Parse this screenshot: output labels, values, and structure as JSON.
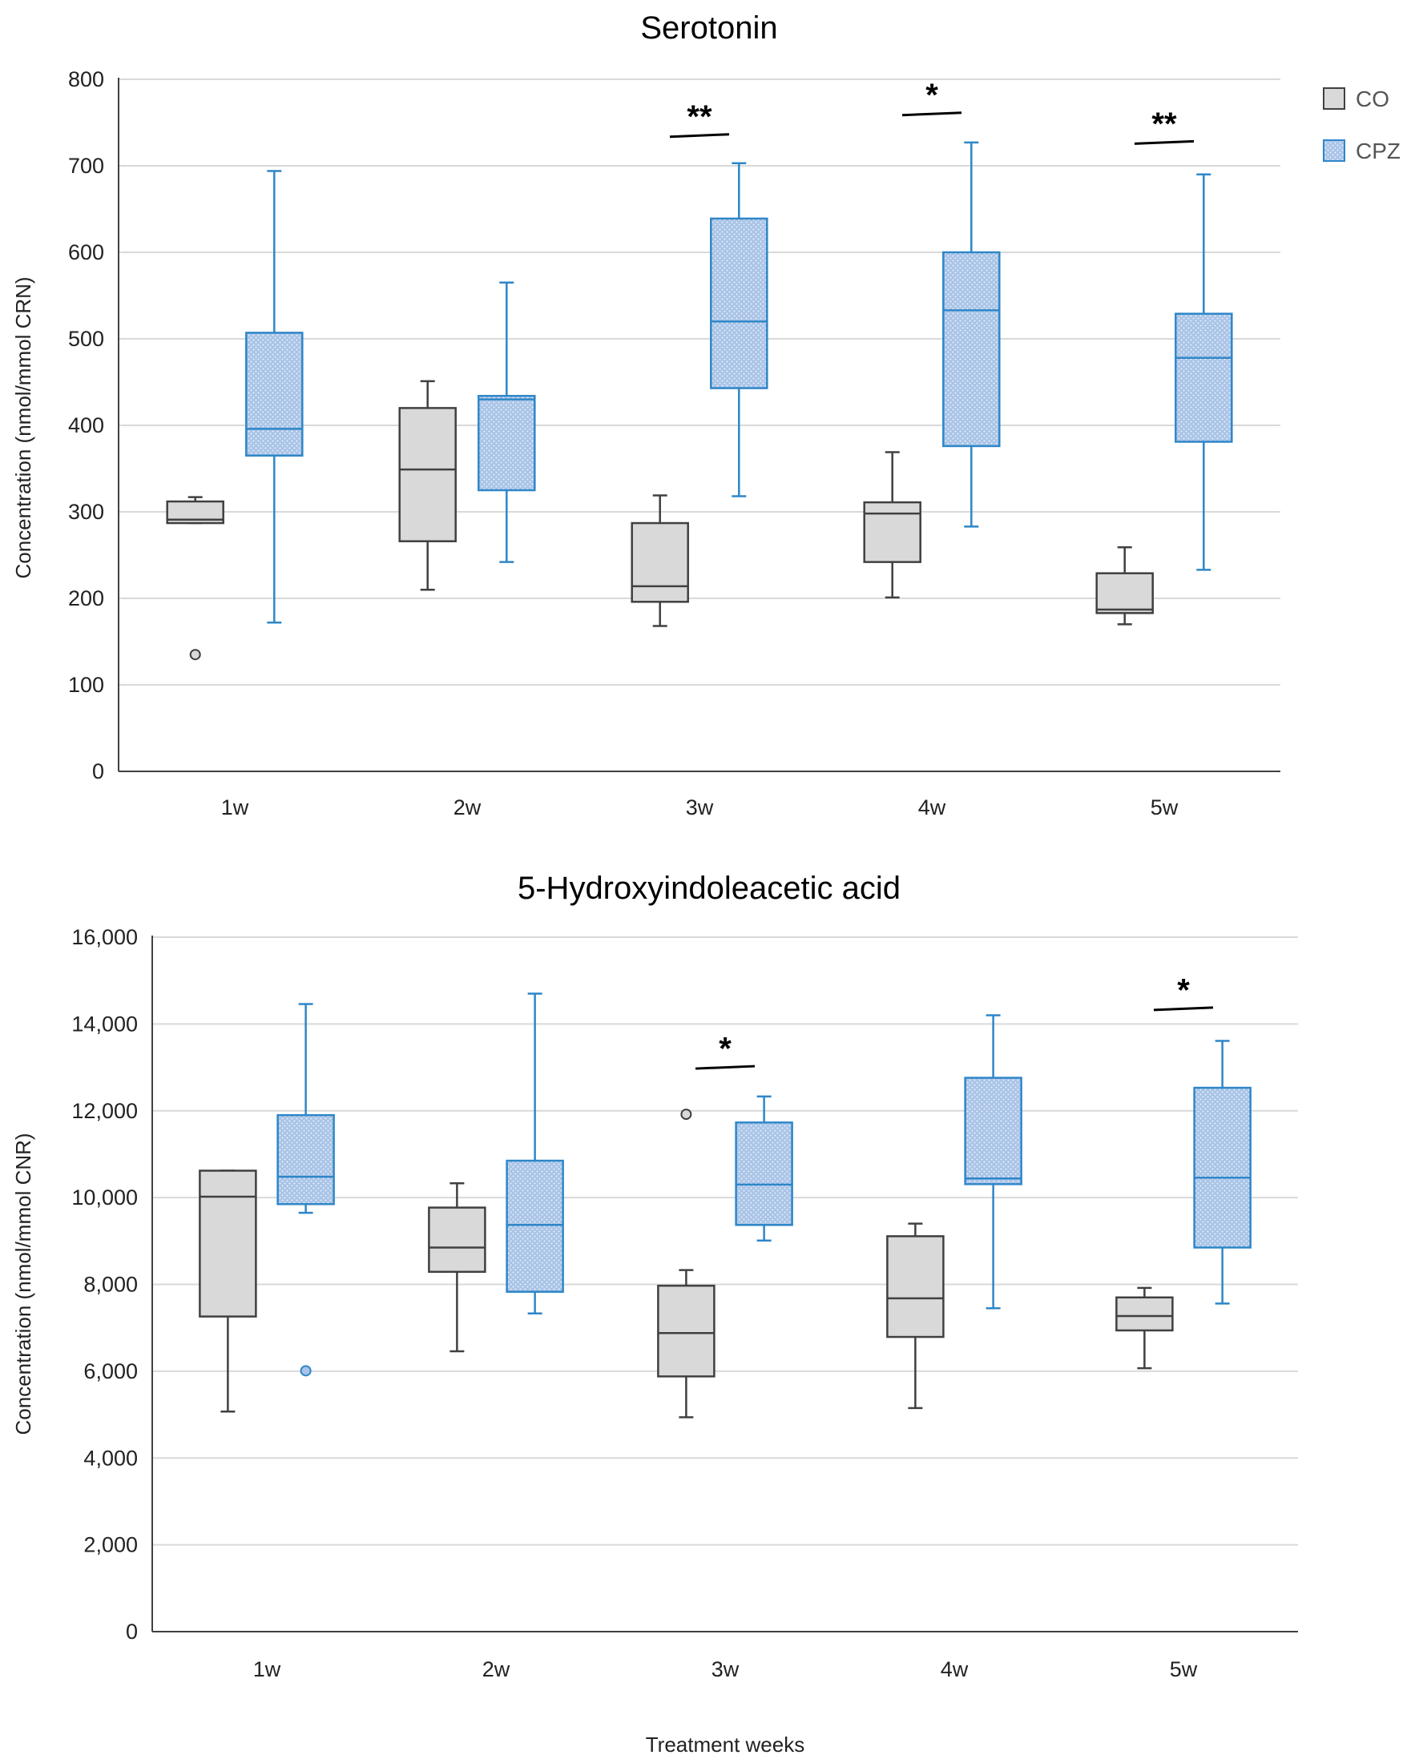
{
  "chart_data": [
    {
      "type": "boxplot",
      "title": "Serotonin",
      "xlabel": "",
      "ylabel": "Concentration (nmol/mmol CRN)",
      "ylim": [
        0,
        800
      ],
      "yticks": [
        0,
        100,
        200,
        300,
        400,
        500,
        600,
        700,
        800
      ],
      "ytick_labels": [
        "0",
        "100",
        "200",
        "300",
        "400",
        "500",
        "600",
        "700",
        "800"
      ],
      "grid": true,
      "categories": [
        "1w",
        "2w",
        "3w",
        "4w",
        "5w"
      ],
      "series": [
        {
          "name": "CO",
          "boxes": [
            {
              "min": 287,
              "q1": 287,
              "median": 291,
              "q3": 312,
              "max": 317,
              "outliers": [
                135
              ]
            },
            {
              "min": 210,
              "q1": 266,
              "median": 349,
              "q3": 420,
              "max": 451,
              "outliers": []
            },
            {
              "min": 168,
              "q1": 196,
              "median": 214,
              "q3": 287,
              "max": 319,
              "outliers": []
            },
            {
              "min": 201,
              "q1": 242,
              "median": 298,
              "q3": 311,
              "max": 369,
              "outliers": []
            },
            {
              "min": 170,
              "q1": 183,
              "median": 187,
              "q3": 229,
              "max": 259,
              "outliers": []
            }
          ]
        },
        {
          "name": "CPZ",
          "boxes": [
            {
              "min": 172,
              "q1": 365,
              "median": 396,
              "q3": 507,
              "max": 694,
              "outliers": []
            },
            {
              "min": 242,
              "q1": 325,
              "median": 430,
              "q3": 434,
              "max": 565,
              "outliers": []
            },
            {
              "min": 318,
              "q1": 443,
              "median": 520,
              "q3": 639,
              "max": 703,
              "outliers": []
            },
            {
              "min": 283,
              "q1": 376,
              "median": 533,
              "q3": 600,
              "max": 727,
              "outliers": []
            },
            {
              "min": 233,
              "q1": 381,
              "median": 478,
              "q3": 529,
              "max": 690,
              "outliers": []
            }
          ]
        }
      ],
      "annotations": [
        {
          "category": "3w",
          "text": "**",
          "y": 735
        },
        {
          "category": "4w",
          "text": "*",
          "y": 760
        },
        {
          "category": "5w",
          "text": "**",
          "y": 727
        }
      ],
      "legend": {
        "position": "right",
        "entries": [
          "CO",
          "CPZ"
        ]
      }
    },
    {
      "type": "boxplot",
      "title": "5-Hydroxyindoleacetic acid",
      "xlabel": "Treatment weeks",
      "ylabel": "Concentration (nmol/mmol CNR)",
      "ylim": [
        0,
        16000
      ],
      "yticks": [
        0,
        2000,
        4000,
        6000,
        8000,
        10000,
        12000,
        14000,
        16000
      ],
      "ytick_labels": [
        "0",
        "2,000",
        "4,000",
        "6,000",
        "8,000",
        "10,000",
        "12,000",
        "14,000",
        "16,000"
      ],
      "grid": true,
      "categories": [
        "1w",
        "2w",
        "3w",
        "4w",
        "5w"
      ],
      "series": [
        {
          "name": "CO",
          "boxes": [
            {
              "min": 5070,
              "q1": 7260,
              "median": 10020,
              "q3": 10620,
              "max": 10620,
              "outliers": []
            },
            {
              "min": 6460,
              "q1": 8290,
              "median": 8850,
              "q3": 9770,
              "max": 10330,
              "outliers": []
            },
            {
              "min": 4940,
              "q1": 5880,
              "median": 6880,
              "q3": 7970,
              "max": 8330,
              "outliers": [
                11920
              ]
            },
            {
              "min": 5150,
              "q1": 6790,
              "median": 7680,
              "q3": 9110,
              "max": 9400,
              "outliers": []
            },
            {
              "min": 6070,
              "q1": 6940,
              "median": 7270,
              "q3": 7700,
              "max": 7920,
              "outliers": []
            }
          ]
        },
        {
          "name": "CPZ",
          "boxes": [
            {
              "min": 9650,
              "q1": 9850,
              "median": 10480,
              "q3": 11900,
              "max": 14460,
              "outliers": [
                6010
              ]
            },
            {
              "min": 7330,
              "q1": 7830,
              "median": 9370,
              "q3": 10850,
              "max": 14700,
              "outliers": []
            },
            {
              "min": 9010,
              "q1": 9370,
              "median": 10300,
              "q3": 11730,
              "max": 12330,
              "outliers": []
            },
            {
              "min": 7450,
              "q1": 10310,
              "median": 10440,
              "q3": 12760,
              "max": 14200,
              "outliers": []
            },
            {
              "min": 7560,
              "q1": 8850,
              "median": 10460,
              "q3": 12530,
              "max": 13610,
              "outliers": []
            }
          ]
        }
      ],
      "annotations": [
        {
          "category": "3w",
          "text": "*",
          "y": 13000
        },
        {
          "category": "5w",
          "text": "*",
          "y": 14350
        }
      ],
      "legend": {
        "position": "right",
        "entries": [
          "CO",
          "CPZ"
        ]
      }
    }
  ],
  "colors": {
    "co_fill": "#d9d9d9",
    "co_stroke": "#404040",
    "cpz_fill": "#a8c3e6",
    "cpz_stroke": "#2e86c8",
    "grid": "#d9d9d9",
    "axis": "#404040"
  }
}
